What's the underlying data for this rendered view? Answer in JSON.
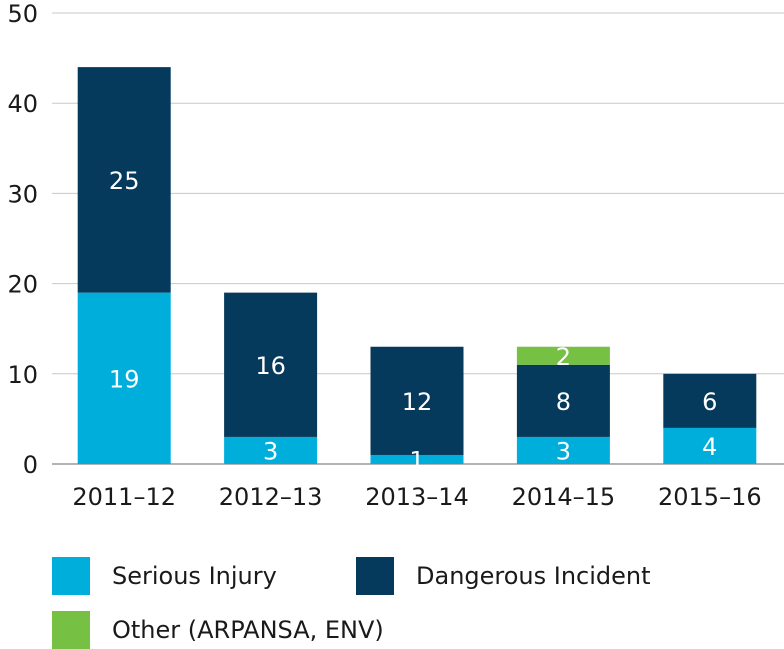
{
  "chart_data": {
    "type": "bar",
    "stacked": true,
    "categories": [
      "2011–12",
      "2012–13",
      "2013–14",
      "2014–15",
      "2015–16"
    ],
    "series": [
      {
        "name": "Serious Injury",
        "color": "#00aedb",
        "values": [
          19,
          3,
          1,
          3,
          4
        ]
      },
      {
        "name": "Dangerous Incident",
        "color": "#063a5d",
        "values": [
          25,
          16,
          12,
          8,
          6
        ]
      },
      {
        "name": "Other (ARPANSA, ENV)",
        "color": "#76c043",
        "values": [
          0,
          0,
          0,
          2,
          0
        ]
      }
    ],
    "y_ticks": [
      0,
      10,
      20,
      30,
      40,
      50
    ],
    "ylim": [
      0,
      50
    ],
    "grid": true,
    "legend_position": "bottom"
  }
}
